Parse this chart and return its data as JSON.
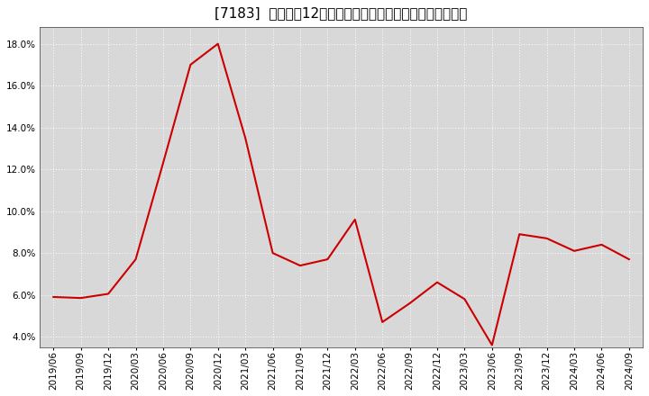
{
  "title": "[7183]  売上高の12か月移動合計の対前年同期増減率の推移",
  "x_labels": [
    "2019/06",
    "2019/09",
    "2019/12",
    "2020/03",
    "2020/06",
    "2020/09",
    "2020/12",
    "2021/03",
    "2021/06",
    "2021/09",
    "2021/12",
    "2022/03",
    "2022/06",
    "2022/09",
    "2022/12",
    "2023/03",
    "2023/06",
    "2023/09",
    "2023/12",
    "2024/03",
    "2024/06",
    "2024/09"
  ],
  "y_values": [
    5.9,
    5.85,
    6.05,
    7.7,
    12.3,
    17.0,
    18.0,
    13.5,
    8.0,
    7.4,
    7.7,
    9.6,
    4.7,
    5.6,
    6.6,
    5.8,
    3.6,
    8.9,
    8.7,
    8.1,
    8.4,
    7.7
  ],
  "line_color": "#cc0000",
  "line_width": 1.5,
  "ylim": [
    3.5,
    18.8
  ],
  "yticks": [
    4.0,
    6.0,
    8.0,
    10.0,
    12.0,
    14.0,
    16.0,
    18.0
  ],
  "background_color": "#ffffff",
  "plot_bg_color": "#d8d8d8",
  "grid_color": "#ffffff",
  "title_fontsize": 11,
  "tick_fontsize": 7.5,
  "fig_width": 7.2,
  "fig_height": 4.4,
  "dpi": 100
}
